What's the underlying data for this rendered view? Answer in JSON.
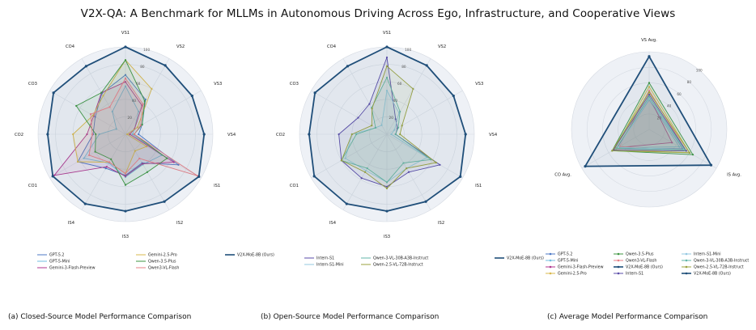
{
  "title": "V2X-QA: A Benchmark for MLLMs in Autonomous Driving Across Ego, Infrastructure, and Cooperative Views",
  "captions": [
    "(a) Closed-Source Model Performance Comparison",
    "(b) Open-Source Model Performance Comparison",
    "(c) Average Model Performance Comparison"
  ],
  "colors": {
    "GPT-5.2": "#4c78c6",
    "GPT-5-Mini": "#72bde0",
    "Gemini-3-Flash-Preview": "#b0368f",
    "Gemini-2.5-Pro": "#d9b84c",
    "Qwen-3.5-Plus": "#3d9641",
    "Qwen3-VL-Flash": "#e77f86",
    "V2X-MoE-8B (Ours)": "#1f4e79",
    "Intern-S1": "#5a4ba8",
    "Intern-S1-Mini": "#94c8e2",
    "Qwen-3-VL-30B-A3B-Instruct": "#62b6a8",
    "Qwen-2.5-VL-72B-Instruct": "#9aa23e"
  },
  "chart_data": [
    {
      "type": "radar",
      "title": "",
      "axes": [
        "VS1",
        "VS2",
        "VS3",
        "VS4",
        "IS1",
        "IS2",
        "IS3",
        "IS4",
        "CO1",
        "CO2",
        "CO3",
        "CO4"
      ],
      "rmax": 100,
      "rticks": [
        20,
        40,
        60,
        80,
        100
      ],
      "grid": true,
      "legend": "bottom",
      "legend_order": [
        "GPT-5.2",
        "GPT-5-Mini",
        "Gemini-3-Flash-Preview",
        "Gemini-2.5-Pro",
        "Qwen-3.5-Plus",
        "Qwen3-VL-Flash",
        "V2X-MoE-8B (Ours)"
      ],
      "series": [
        {
          "name": "GPT-5.2",
          "values": [
            68,
            46,
            22,
            15,
            70,
            38,
            47,
            45,
            63,
            37,
            40,
            54
          ]
        },
        {
          "name": "GPT-5-Mini",
          "values": [
            55,
            30,
            12,
            8,
            48,
            40,
            49,
            38,
            55,
            30,
            12,
            30
          ]
        },
        {
          "name": "Gemini-3-Flash-Preview",
          "values": [
            60,
            38,
            12,
            5,
            64,
            39,
            48,
            43,
            94,
            44,
            42,
            55
          ]
        },
        {
          "name": "Gemini-2.5-Pro",
          "values": [
            85,
            60,
            16,
            2,
            28,
            22,
            45,
            37,
            63,
            60,
            43,
            51
          ]
        },
        {
          "name": "Qwen-3.5-Plus",
          "values": [
            85,
            44,
            22,
            10,
            55,
            50,
            58,
            33,
            40,
            34,
            65,
            55
          ]
        },
        {
          "name": "Qwen3-VL-Flash",
          "values": [
            64,
            40,
            20,
            10,
            95,
            32,
            45,
            37,
            48,
            38,
            46,
            36
          ]
        },
        {
          "name": "V2X-MoE-8B (Ours)",
          "values": [
            100,
            91,
            88,
            90,
            97,
            89,
            88,
            92,
            96,
            89,
            95,
            90
          ]
        }
      ]
    },
    {
      "type": "radar",
      "title": "",
      "axes": [
        "VS1",
        "VS2",
        "VS3",
        "VS4",
        "IS1",
        "IS2",
        "IS3",
        "IS4",
        "CO1",
        "CO2",
        "CO3",
        "CO4"
      ],
      "rmax": 100,
      "rticks": [
        20,
        40,
        60,
        80,
        100
      ],
      "grid": true,
      "legend": "bottom",
      "legend_order": [
        "Intern-S1",
        "Intern-S1-Mini",
        "Qwen-3-VL-30B-A3B-Instruct",
        "Qwen-2.5-VL-72B-Instruct",
        "V2X-MoE-8B (Ours)"
      ],
      "series": [
        {
          "name": "Intern-S1",
          "values": [
            88,
            20,
            14,
            10,
            70,
            50,
            60,
            58,
            60,
            55,
            38,
            40
          ]
        },
        {
          "name": "Intern-S1-Mini",
          "values": [
            50,
            28,
            10,
            5,
            53,
            45,
            55,
            48,
            55,
            40,
            15,
            12
          ]
        },
        {
          "name": "Qwen-3-VL-30B-A3B-Instruct",
          "values": [
            65,
            30,
            15,
            10,
            58,
            38,
            55,
            45,
            60,
            35,
            15,
            35
          ]
        },
        {
          "name": "Qwen-2.5-VL-72B-Instruct",
          "values": [
            78,
            60,
            20,
            15,
            65,
            45,
            62,
            50,
            60,
            40,
            20,
            34
          ]
        },
        {
          "name": "V2X-MoE-8B (Ours)",
          "values": [
            100,
            91,
            88,
            90,
            97,
            89,
            88,
            92,
            96,
            89,
            95,
            90
          ]
        }
      ]
    },
    {
      "type": "radar",
      "title": "",
      "axes": [
        "VS Avg.",
        "IS Avg.",
        "CO Avg."
      ],
      "rmax": 100,
      "rticks": [
        20,
        40,
        60,
        80,
        100
      ],
      "grid": true,
      "legend": "bottom",
      "legend_order": [
        "GPT-5.2",
        "GPT-5-Mini",
        "Gemini-3-Flash-Preview",
        "Gemini-2.5-Pro",
        "Qwen-3.5-Plus",
        "Qwen3-VL-Flash",
        "V2X-MoE-8B (Ours)",
        "Intern-S1",
        "Intern-S1-Mini",
        "Qwen-3-VL-30B-A3B-Instruct",
        "Qwen-2.5-VL-72B-Instruct",
        "V2X-MoE-8B (Ours)"
      ],
      "series": [
        {
          "name": "GPT-5.2",
          "values": [
            40,
            50,
            48
          ]
        },
        {
          "name": "GPT-5-Mini",
          "values": [
            38,
            45,
            47
          ]
        },
        {
          "name": "Gemini-3-Flash-Preview",
          "values": [
            42,
            34,
            47
          ]
        },
        {
          "name": "Gemini-2.5-Pro",
          "values": [
            55,
            60,
            52
          ]
        },
        {
          "name": "Qwen-3.5-Plus",
          "values": [
            60,
            65,
            55
          ]
        },
        {
          "name": "Qwen3-VL-Flash",
          "values": [
            50,
            55,
            44
          ]
        },
        {
          "name": "V2X-MoE-8B (Ours)",
          "values": [
            94,
            92,
            95
          ]
        },
        {
          "name": "Intern-S1",
          "values": [
            45,
            55,
            53
          ]
        },
        {
          "name": "Intern-S1-Mini",
          "values": [
            40,
            52,
            46
          ]
        },
        {
          "name": "Qwen-3-VL-30B-A3B-Instruct",
          "values": [
            42,
            53,
            49
          ]
        },
        {
          "name": "Qwen-2.5-VL-72B-Instruct",
          "values": [
            48,
            60,
            55
          ]
        }
      ]
    }
  ]
}
